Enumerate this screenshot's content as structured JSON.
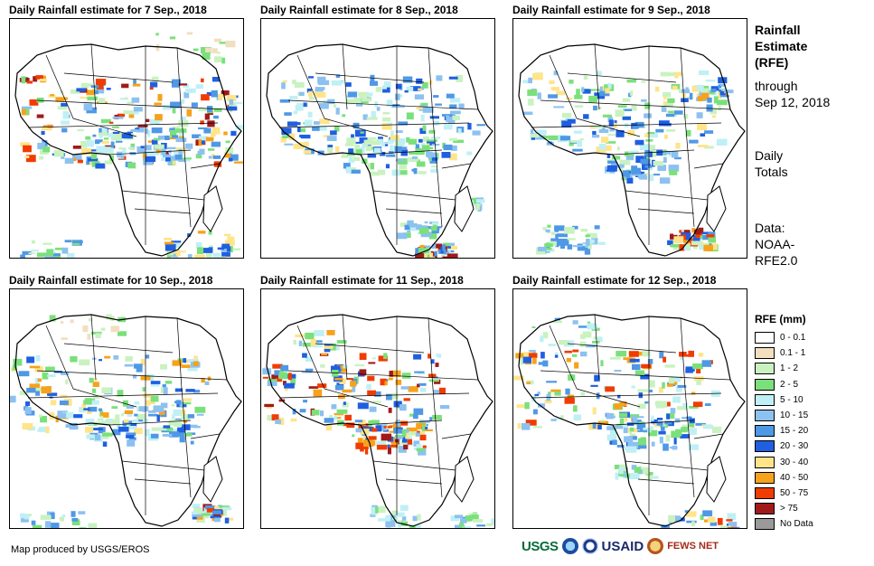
{
  "panels": [
    {
      "title": "Daily Rainfall estimate for 7 Sep., 2018"
    },
    {
      "title": "Daily Rainfall estimate for 8 Sep., 2018"
    },
    {
      "title": "Daily Rainfall estimate for 9 Sep., 2018"
    },
    {
      "title": "Daily Rainfall estimate for 10 Sep., 2018"
    },
    {
      "title": "Daily Rainfall estimate for 11 Sep., 2018"
    },
    {
      "title": "Daily Rainfall estimate for 12 Sep., 2018"
    }
  ],
  "side": {
    "title_lines": [
      "Rainfall",
      "Estimate",
      "(RFE)"
    ],
    "through_lines": [
      "through",
      "Sep 12, 2018"
    ],
    "totals_lines": [
      "Daily",
      "Totals"
    ],
    "data_lines": [
      "Data:",
      "NOAA-",
      "RFE2.0"
    ]
  },
  "legend": {
    "title": "RFE (mm)",
    "items": [
      {
        "label": "0 - 0.1",
        "color": "#ffffff"
      },
      {
        "label": "0.1 - 1",
        "color": "#f1dfc0"
      },
      {
        "label": "1 - 2",
        "color": "#c9f2c0"
      },
      {
        "label": "2 - 5",
        "color": "#7be07b"
      },
      {
        "label": "5 - 10",
        "color": "#bff0f5"
      },
      {
        "label": "10 - 15",
        "color": "#8cc1f0"
      },
      {
        "label": "15 - 20",
        "color": "#4f98e6"
      },
      {
        "label": "20 - 30",
        "color": "#1f5fe0"
      },
      {
        "label": "30 - 40",
        "color": "#ffe48a"
      },
      {
        "label": "40 - 50",
        "color": "#f6a21a"
      },
      {
        "label": "50 - 75",
        "color": "#f03c00"
      },
      {
        "label": "> 75",
        "color": "#a01a1a"
      },
      {
        "label": "No Data",
        "color": "#9a9a9a"
      }
    ]
  },
  "credit": "Map produced by USGS/EROS",
  "logos": {
    "usgs": "USGS",
    "usaid": "USAID",
    "fewsnet": "FEWS NET"
  }
}
